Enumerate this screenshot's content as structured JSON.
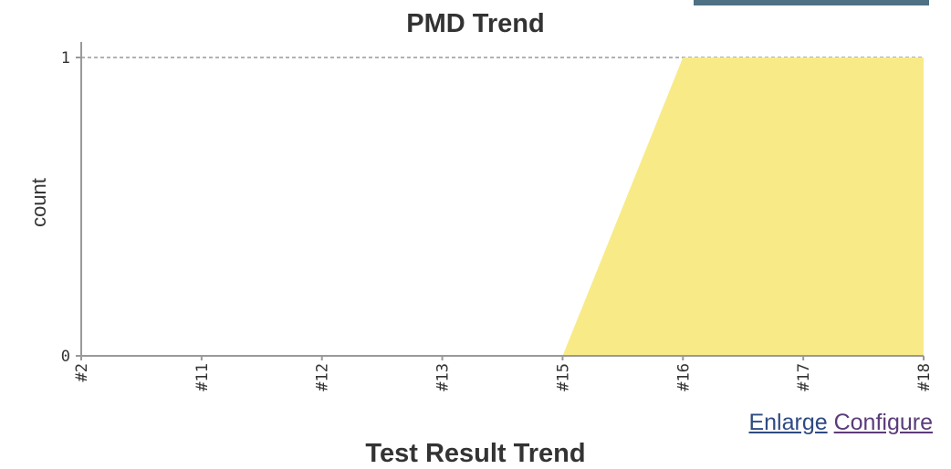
{
  "header": {
    "top_button_color": "#4e7183"
  },
  "chart_data": {
    "type": "area",
    "title": "PMD Trend",
    "ylabel": "count",
    "xlabel": "",
    "categories": [
      "#2",
      "#11",
      "#12",
      "#13",
      "#15",
      "#16",
      "#17",
      "#18"
    ],
    "series": [
      {
        "values": [
          0,
          0,
          0,
          0,
          0,
          1,
          1,
          1
        ],
        "color": "#f8eb87"
      }
    ],
    "ylim": [
      0,
      1
    ],
    "yticks": [
      0,
      1
    ],
    "grid": "dashed line at y=1",
    "legend": "none"
  },
  "links": {
    "enlarge": "Enlarge",
    "configure": "Configure"
  },
  "next_section": {
    "title": "Test Result Trend"
  }
}
